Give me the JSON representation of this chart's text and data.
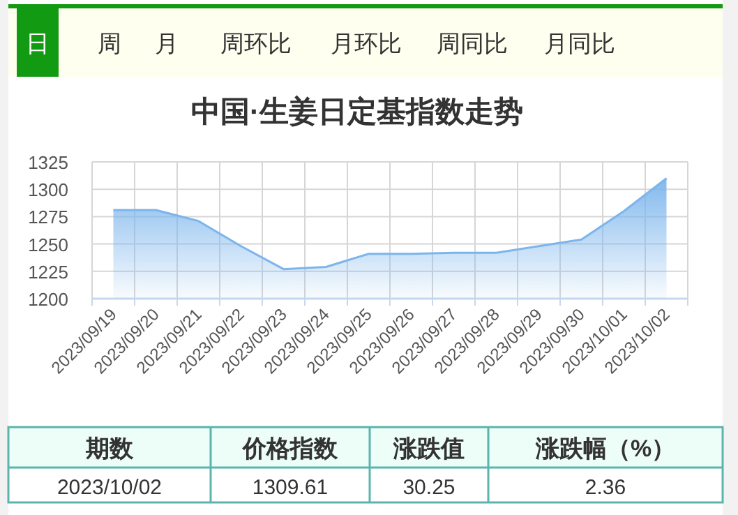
{
  "chart_data": {
    "type": "area",
    "title": "中国·生姜日定基指数走势",
    "categories": [
      "2023/09/19",
      "2023/09/20",
      "2023/09/21",
      "2023/09/22",
      "2023/09/23",
      "2023/09/24",
      "2023/09/25",
      "2023/09/26",
      "2023/09/27",
      "2023/09/28",
      "2023/09/29",
      "2023/09/30",
      "2023/10/01",
      "2023/10/02"
    ],
    "series": [
      {
        "color": "#7cb5ec",
        "values": [
          1281,
          1281,
          1271,
          1248,
          1227,
          1229,
          1241,
          1241,
          1242,
          1242,
          1248,
          1254,
          1280,
          1310
        ]
      }
    ],
    "ylim": [
      1200,
      1325
    ],
    "yticks": [
      1200,
      1225,
      1250,
      1275,
      1300,
      1325
    ],
    "grid": true,
    "annotations": [
      "日",
      "周",
      "月",
      "周环比",
      "月环比",
      "周同比",
      "月同比",
      "期数",
      "价格指数",
      "涨跌值",
      "涨跌幅（%）",
      "2023/10/02",
      "1309.61",
      "30.25",
      "2.36"
    ]
  }
}
